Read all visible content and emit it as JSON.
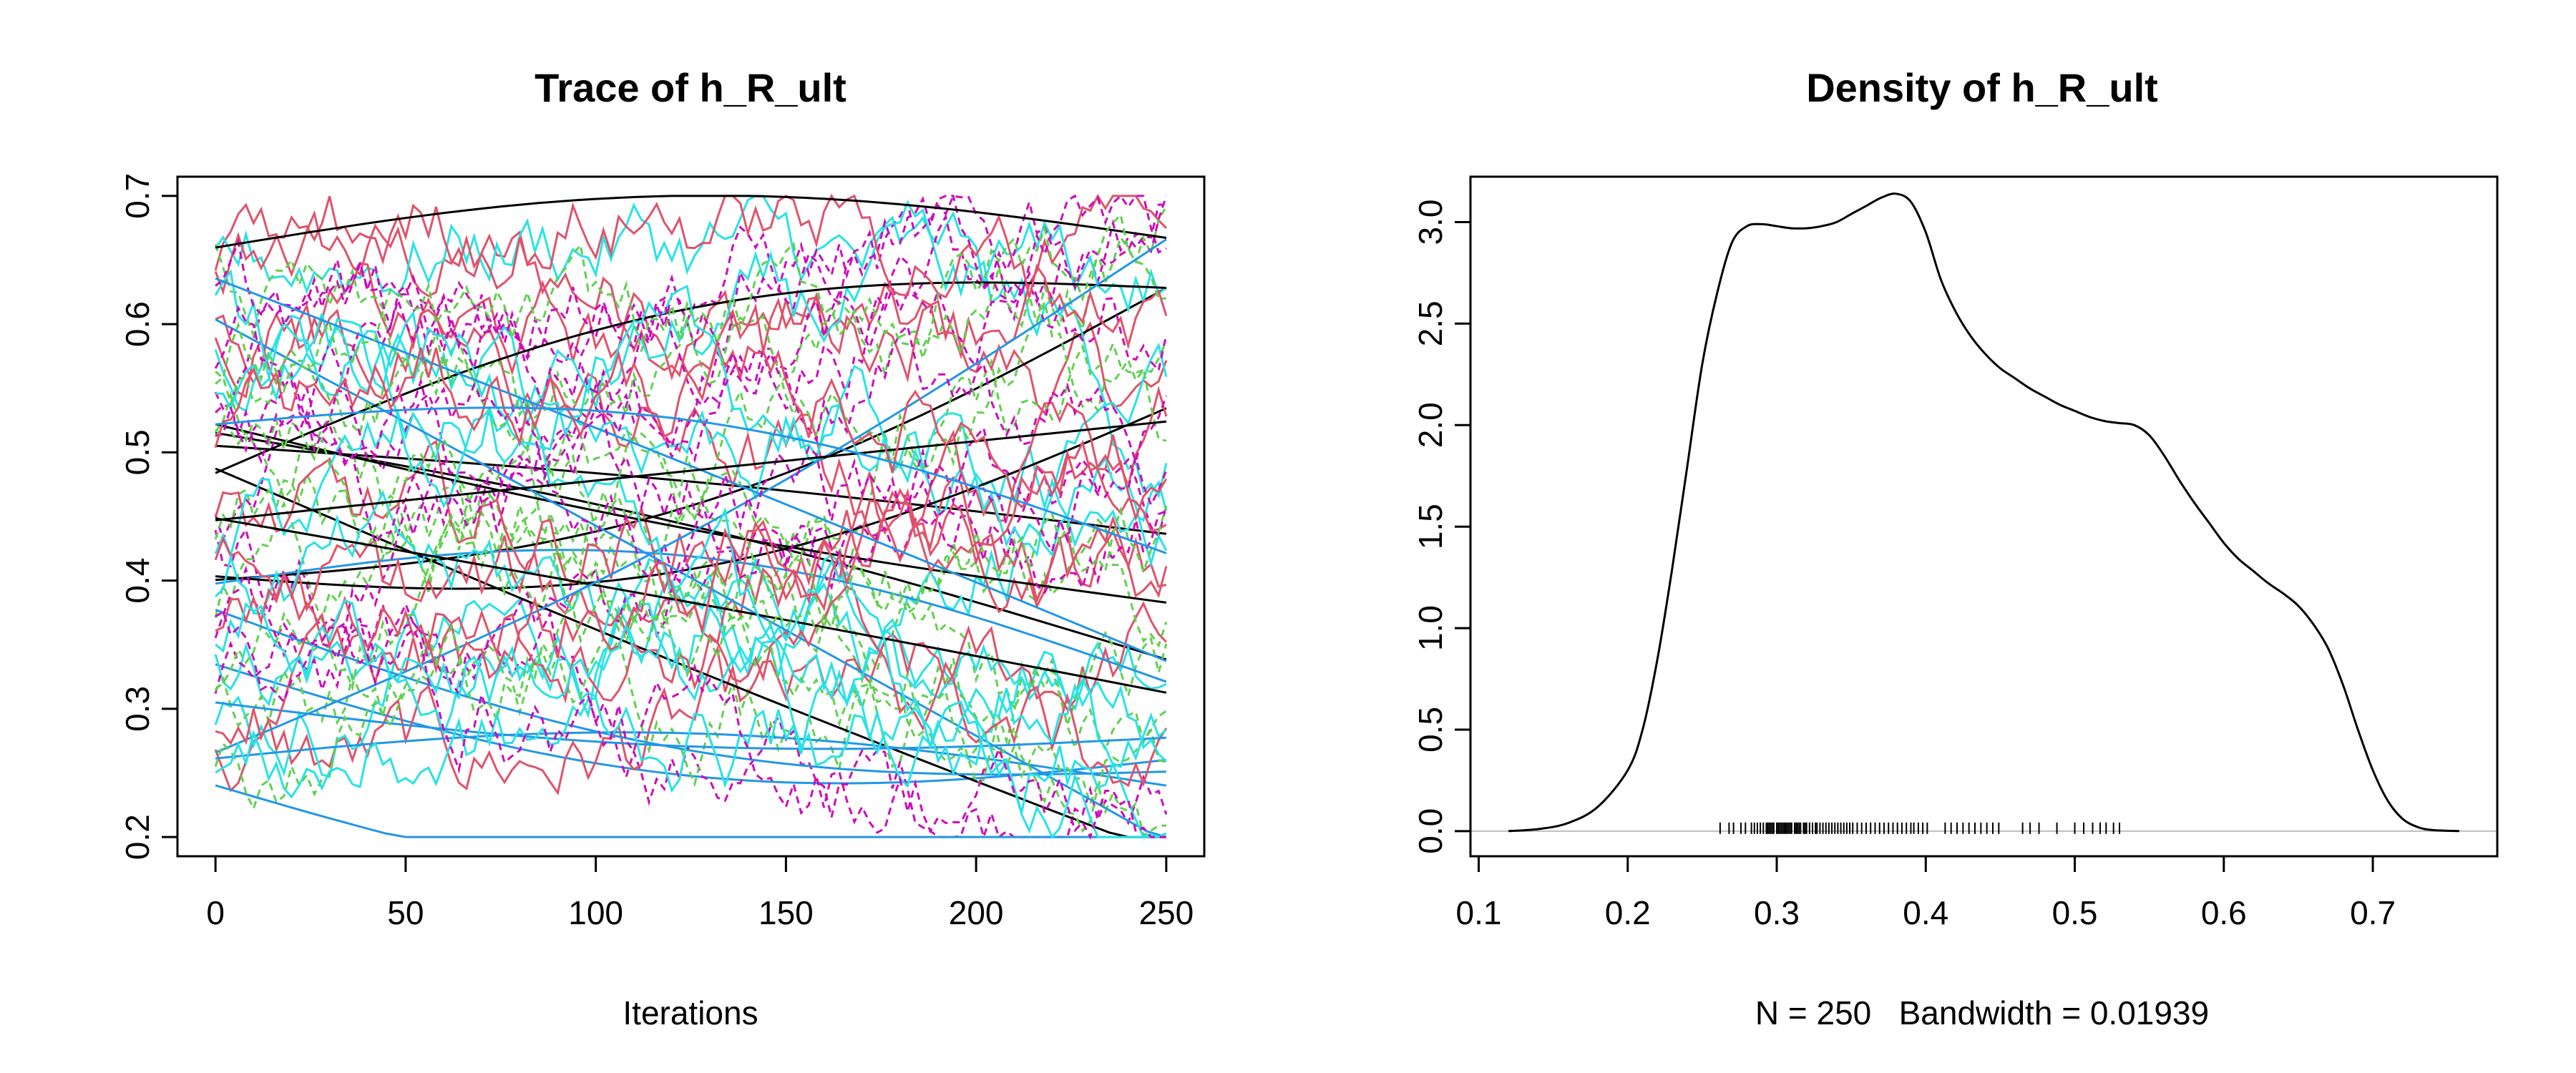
{
  "chart_data": [
    {
      "type": "line",
      "title": "Trace of h_R_ult",
      "xlabel": "Iterations",
      "ylabel": "",
      "xlim": [
        0,
        250
      ],
      "ylim": [
        0.2,
        0.7
      ],
      "x_ticks": [
        "0",
        "50",
        "100",
        "150",
        "200",
        "250"
      ],
      "y_ticks": [
        "0.2",
        "0.3",
        "0.4",
        "0.5",
        "0.6",
        "0.7"
      ],
      "chain_colors": [
        "#000000",
        "#DF536B",
        "#61D04F",
        "#2297E6",
        "#28E2E5",
        "#CD0BBC"
      ],
      "n_chains": 60,
      "chains_shown": "many overlapping MCMC chains (solid and dashed) spanning roughly 0.2 to 0.7 over 250 iterations"
    },
    {
      "type": "line",
      "title": "Density of h_R_ult",
      "xlabel": "N = 250   Bandwidth = 0.01939",
      "ylabel": "",
      "xlim": [
        0.1,
        0.75
      ],
      "ylim": [
        0,
        3.1
      ],
      "x_ticks": [
        "0.1",
        "0.2",
        "0.3",
        "0.4",
        "0.5",
        "0.6",
        "0.7"
      ],
      "y_ticks": [
        "0.0",
        "0.5",
        "1.0",
        "1.5",
        "2.0",
        "2.5",
        "3.0"
      ],
      "x": [
        0.12,
        0.14,
        0.16,
        0.18,
        0.2,
        0.21,
        0.22,
        0.23,
        0.24,
        0.25,
        0.26,
        0.27,
        0.28,
        0.29,
        0.3,
        0.31,
        0.32,
        0.33,
        0.34,
        0.35,
        0.36,
        0.37,
        0.38,
        0.39,
        0.4,
        0.41,
        0.42,
        0.43,
        0.44,
        0.45,
        0.46,
        0.47,
        0.48,
        0.49,
        0.5,
        0.51,
        0.52,
        0.53,
        0.54,
        0.55,
        0.56,
        0.57,
        0.58,
        0.59,
        0.6,
        0.61,
        0.62,
        0.63,
        0.64,
        0.65,
        0.66,
        0.67,
        0.68,
        0.69,
        0.7,
        0.71,
        0.72,
        0.73,
        0.74,
        0.758
      ],
      "y": [
        0.0,
        0.01,
        0.04,
        0.12,
        0.3,
        0.5,
        0.85,
        1.3,
        1.8,
        2.3,
        2.65,
        2.9,
        2.98,
        2.99,
        2.98,
        2.97,
        2.97,
        2.98,
        3.0,
        3.04,
        3.08,
        3.12,
        3.14,
        3.1,
        2.95,
        2.72,
        2.56,
        2.44,
        2.35,
        2.28,
        2.23,
        2.18,
        2.14,
        2.1,
        2.07,
        2.04,
        2.02,
        2.01,
        2.0,
        1.95,
        1.85,
        1.73,
        1.62,
        1.52,
        1.42,
        1.34,
        1.28,
        1.22,
        1.17,
        1.11,
        1.02,
        0.9,
        0.72,
        0.5,
        0.3,
        0.15,
        0.06,
        0.02,
        0.005,
        0.0
      ],
      "rug": [
        0.262,
        0.268,
        0.271,
        0.276,
        0.279,
        0.283,
        0.285,
        0.287,
        0.289,
        0.291,
        0.293,
        0.294,
        0.295,
        0.296,
        0.297,
        0.298,
        0.3,
        0.301,
        0.302,
        0.303,
        0.304,
        0.305,
        0.306,
        0.307,
        0.308,
        0.309,
        0.31,
        0.312,
        0.313,
        0.314,
        0.315,
        0.316,
        0.318,
        0.319,
        0.32,
        0.322,
        0.324,
        0.326,
        0.327,
        0.329,
        0.331,
        0.333,
        0.335,
        0.337,
        0.339,
        0.341,
        0.343,
        0.345,
        0.347,
        0.349,
        0.351,
        0.354,
        0.357,
        0.36,
        0.363,
        0.366,
        0.369,
        0.372,
        0.375,
        0.378,
        0.381,
        0.384,
        0.387,
        0.39,
        0.392,
        0.395,
        0.398,
        0.401,
        0.413,
        0.417,
        0.421,
        0.425,
        0.429,
        0.433,
        0.437,
        0.441,
        0.445,
        0.449,
        0.465,
        0.47,
        0.476,
        0.488,
        0.5,
        0.506,
        0.512,
        0.517,
        0.521,
        0.526,
        0.53
      ]
    }
  ]
}
